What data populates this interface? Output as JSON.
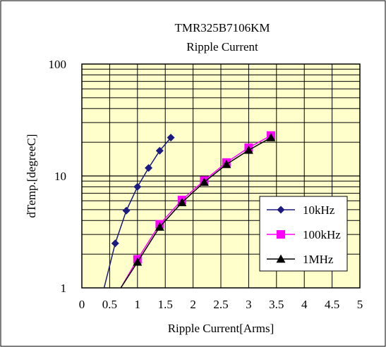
{
  "chart_data": {
    "type": "line",
    "title": "TMR325B7106KM",
    "subtitle": "Ripple Current",
    "xlabel": "Ripple Current[Arms]",
    "ylabel": "dTemp.[degreeC]",
    "xlim": [
      0,
      5
    ],
    "ylim": [
      1,
      100
    ],
    "yscale": "log",
    "x_ticks": [
      "0",
      "0.5",
      "1",
      "1.5",
      "2",
      "2.5",
      "3",
      "3.5",
      "4",
      "4.5",
      "5"
    ],
    "y_ticks": [
      "1",
      "10",
      "100"
    ],
    "grid": true,
    "legend_position": "bottom-right",
    "plot_background": "#ffffcc",
    "series": [
      {
        "name": "10kHz",
        "color": "#1a1a80",
        "marker": "diamond",
        "x": [
          0.6,
          0.8,
          1.0,
          1.2,
          1.4,
          1.6
        ],
        "y": [
          2.5,
          4.9,
          8.0,
          11.8,
          16.8,
          22.0
        ],
        "fit_x": [
          0.4,
          0.6,
          0.8,
          1.0,
          1.2,
          1.4,
          1.6
        ],
        "fit_y": [
          1.0,
          2.5,
          4.9,
          8.0,
          11.8,
          16.8,
          22.0
        ]
      },
      {
        "name": "100kHz",
        "color": "#ff00ff",
        "marker": "square",
        "x": [
          1.0,
          1.4,
          1.8,
          2.2,
          2.6,
          3.0,
          3.4
        ],
        "y": [
          1.8,
          3.7,
          6.1,
          9.1,
          13.2,
          17.9,
          23.0
        ],
        "fit_x": [
          0.7,
          1.0,
          1.4,
          1.8,
          2.2,
          2.6,
          3.0,
          3.4
        ],
        "fit_y": [
          1.0,
          1.8,
          3.7,
          6.1,
          9.1,
          13.2,
          17.9,
          23.0
        ]
      },
      {
        "name": "1MHz",
        "color": "#000000",
        "marker": "triangle",
        "x": [
          1.0,
          1.4,
          1.8,
          2.2,
          2.6,
          3.0,
          3.4
        ],
        "y": [
          1.7,
          3.5,
          5.8,
          8.8,
          12.7,
          17.0,
          22.0
        ],
        "fit_x": [
          0.7,
          1.0,
          1.4,
          1.8,
          2.2,
          2.6,
          3.0,
          3.4
        ],
        "fit_y": [
          1.0,
          1.7,
          3.5,
          5.8,
          8.8,
          12.7,
          17.0,
          22.0
        ]
      }
    ]
  }
}
